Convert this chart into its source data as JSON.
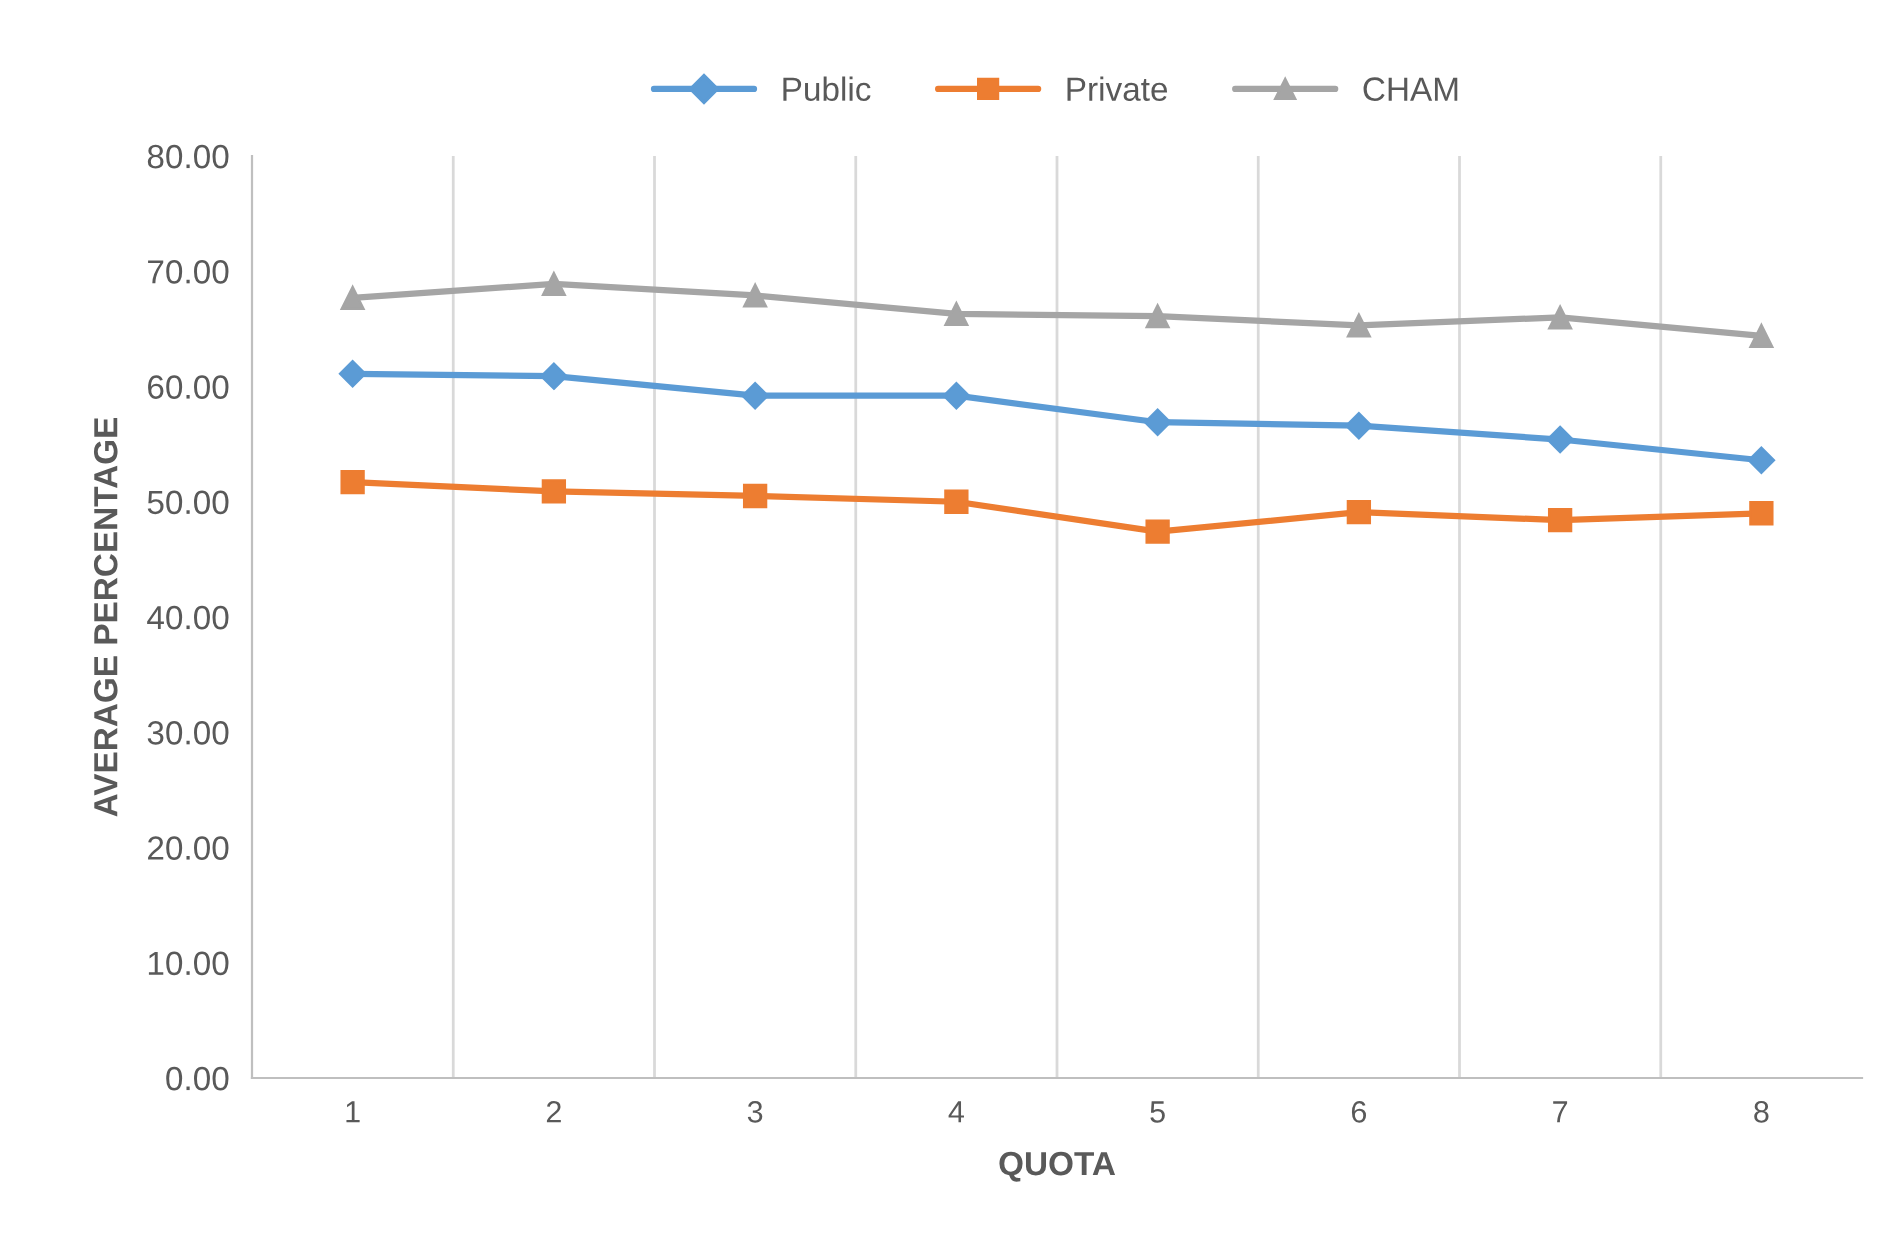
{
  "chart_data": {
    "type": "line",
    "xlabel": "QUOTA",
    "ylabel": "AVERAGE PERCENTAGE",
    "categories": [
      "1",
      "2",
      "3",
      "4",
      "5",
      "6",
      "7",
      "8"
    ],
    "series": [
      {
        "name": "Public",
        "color": "#5b9bd5",
        "marker": "diamond",
        "values": [
          61.1,
          60.9,
          59.2,
          59.2,
          56.9,
          56.6,
          55.4,
          53.6
        ]
      },
      {
        "name": "Private",
        "color": "#ed7d31",
        "marker": "square",
        "values": [
          51.7,
          50.9,
          50.5,
          50.0,
          47.4,
          49.1,
          48.4,
          49.0
        ]
      },
      {
        "name": "CHAM",
        "color": "#a5a5a5",
        "marker": "triangle",
        "values": [
          67.7,
          68.9,
          67.9,
          66.3,
          66.1,
          65.3,
          66.0,
          64.4
        ]
      }
    ],
    "ylim": [
      0,
      80
    ],
    "yticks": [
      {
        "value": 0,
        "label": "0.00"
      },
      {
        "value": 10,
        "label": "10.00"
      },
      {
        "value": 20,
        "label": "20.00"
      },
      {
        "value": 30,
        "label": "30.00"
      },
      {
        "value": 40,
        "label": "40.00"
      },
      {
        "value": 50,
        "label": "50.00"
      },
      {
        "value": 60,
        "label": "60.00"
      },
      {
        "value": 70,
        "label": "70.00"
      },
      {
        "value": 80,
        "label": "80.00"
      }
    ],
    "grid": "x",
    "legend": "top",
    "line_style": "solid"
  }
}
